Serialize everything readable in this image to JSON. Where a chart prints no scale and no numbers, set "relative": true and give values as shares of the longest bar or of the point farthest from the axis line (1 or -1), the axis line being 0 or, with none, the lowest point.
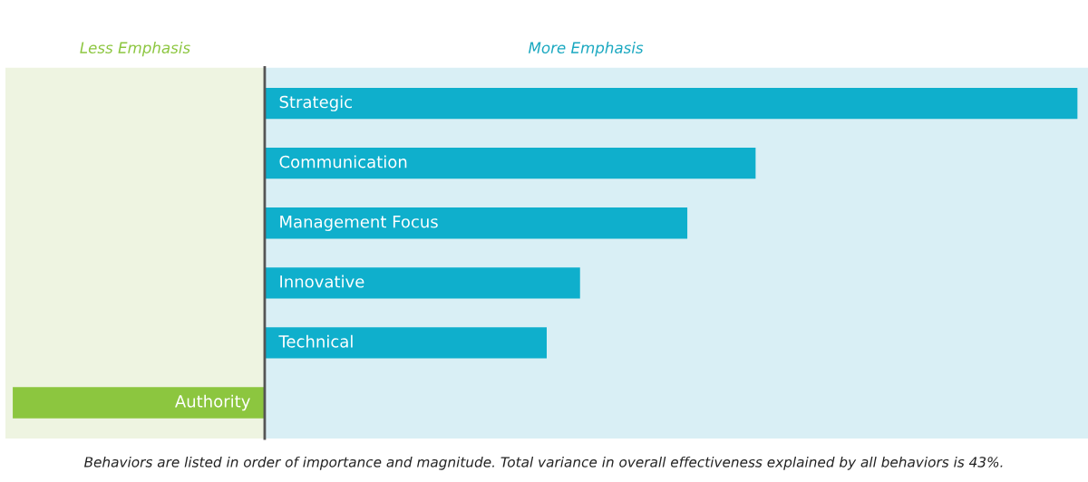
{
  "chart_data": {
    "type": "bar",
    "orientation": "horizontal",
    "relative": true,
    "categories": [
      "Strategic",
      "Communication",
      "Management Focus",
      "Innovative",
      "Technical",
      "Authority"
    ],
    "values": [
      1,
      0.604,
      0.52,
      0.388,
      0.347,
      -0.31
    ],
    "colors": [
      "#0fafcc",
      "#0fafcc",
      "#0fafcc",
      "#0fafcc",
      "#0fafcc",
      "#8cc63f"
    ],
    "bands": [
      {
        "axis": "x",
        "from": -0.319,
        "to": 0,
        "label": "Less Emphasis",
        "color": "#eef4e1"
      },
      {
        "axis": "x",
        "from": 0,
        "to": 1.013,
        "label": "More Emphasis",
        "color": "#d9eff5"
      }
    ],
    "annotations": [
      "Behaviors are listed in order of importance and magnitude. Total variance in overall effectiveness explained by all behaviors is 43%."
    ]
  }
}
